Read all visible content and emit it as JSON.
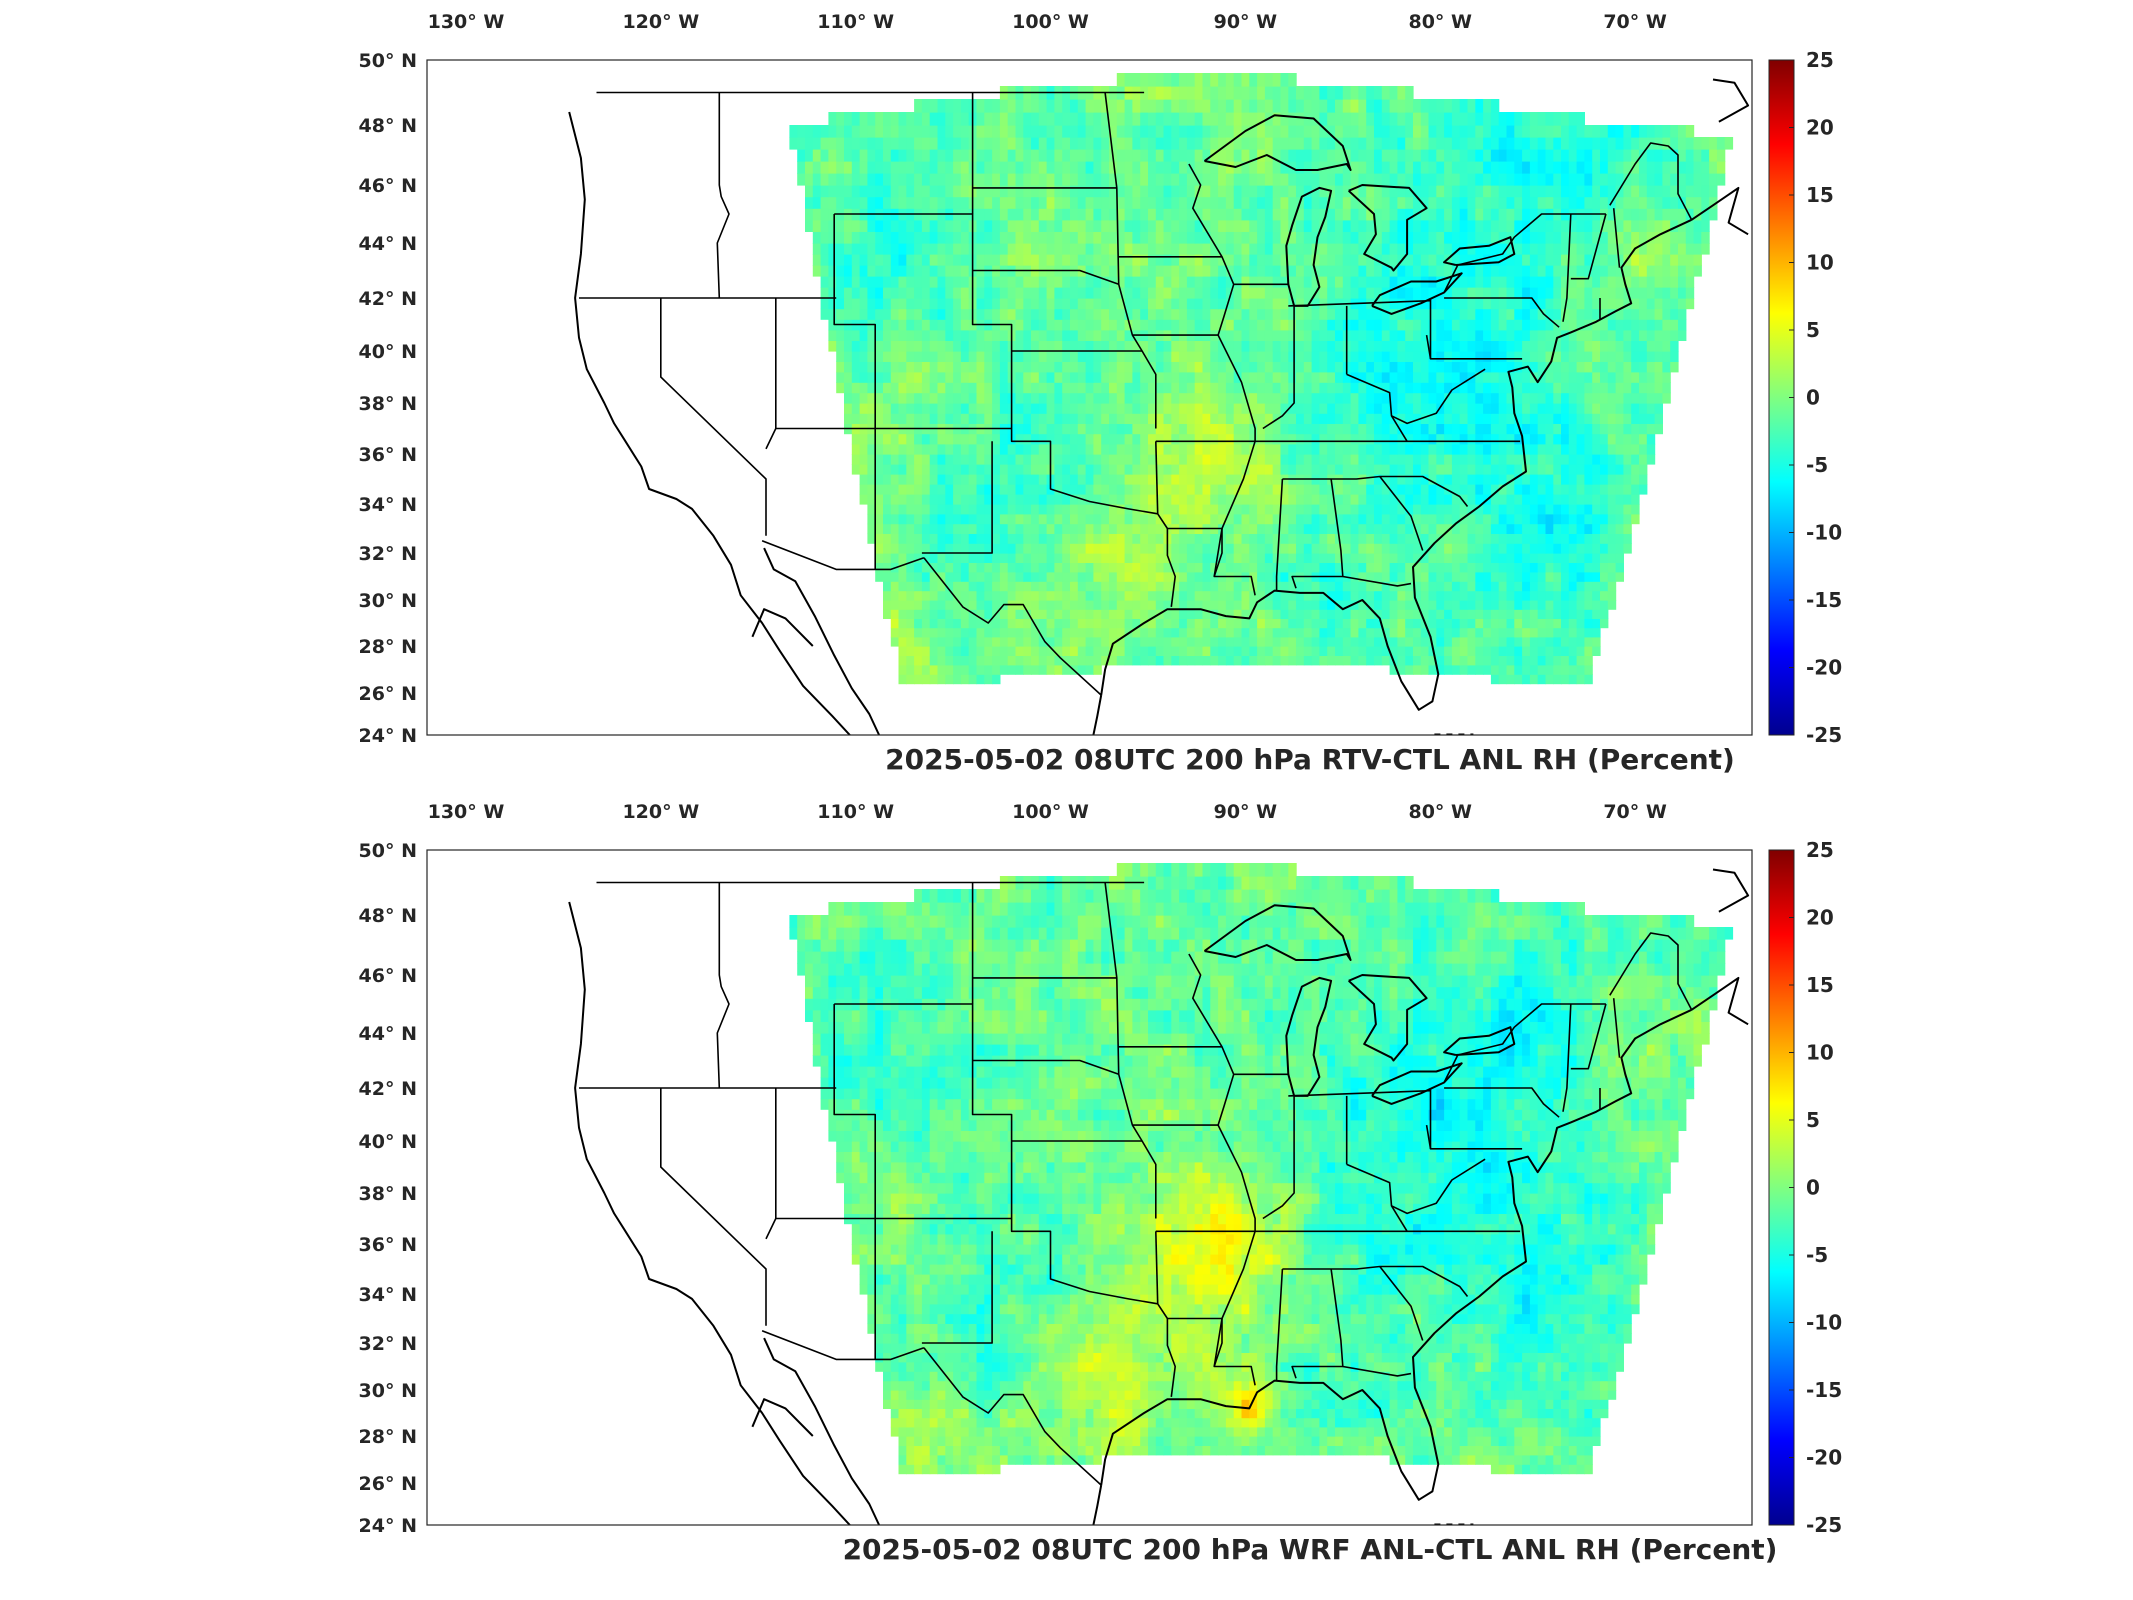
{
  "panels": [
    {
      "title": "2025-05-02 08UTC 200 hPa RTV-CTL ANL RH (Percent)",
      "pattern": "rtv",
      "colorbar_ticks": [
        "25",
        "20",
        "15",
        "10",
        "5",
        "0",
        "-5",
        "-10",
        "-15",
        "-20",
        "-25"
      ],
      "lon_labels": [
        "130° W",
        "120° W",
        "110° W",
        "100° W",
        "90° W",
        "80° W",
        "70° W"
      ],
      "lat_labels": [
        "50° N",
        "48° N",
        "46° N",
        "44° N",
        "42° N",
        "40° N",
        "38° N",
        "36° N",
        "34° N",
        "32° N",
        "30° N",
        "28° N",
        "26° N",
        "24° N"
      ]
    },
    {
      "title": "2025-05-02 08UTC 200 hPa WRF ANL-CTL ANL RH (Percent)",
      "pattern": "wrf",
      "colorbar_ticks": [
        "25",
        "20",
        "15",
        "10",
        "5",
        "0",
        "-5",
        "-10",
        "-15",
        "-20",
        "-25"
      ],
      "lon_labels": [
        "130° W",
        "120° W",
        "110° W",
        "100° W",
        "90° W",
        "80° W",
        "70° W"
      ],
      "lat_labels": [
        "50° N",
        "48° N",
        "46° N",
        "44° N",
        "42° N",
        "40° N",
        "38° N",
        "36° N",
        "34° N",
        "32° N",
        "30° N",
        "28° N",
        "26° N",
        "24° N"
      ]
    }
  ],
  "colorbar": {
    "min": -25,
    "max": 25,
    "colormap": "jet",
    "colors": [
      "#00008f",
      "#0000ff",
      "#0080ff",
      "#00ffff",
      "#80ff80",
      "#ffff00",
      "#ff8000",
      "#ff0000",
      "#800000"
    ]
  },
  "map": {
    "lon_range": [
      -132,
      -64
    ],
    "lat_range": [
      24,
      50
    ]
  }
}
